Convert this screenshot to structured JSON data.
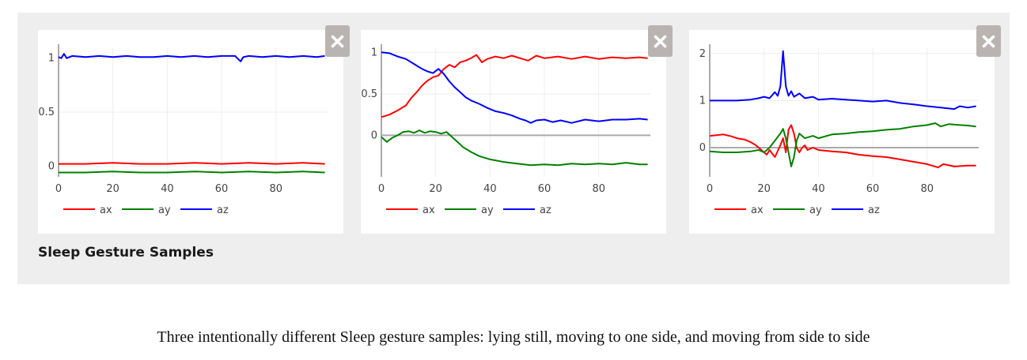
{
  "figure": {
    "title": "Sleep Gesture Samples",
    "caption": "Three intentionally different Sleep gesture samples: lying still, moving to one side, and moving from side to side"
  },
  "icons": {
    "close": "close-icon"
  },
  "colors": {
    "ax": "#ff0000",
    "ay": "#008000",
    "az": "#0000ff",
    "panel": "#eeeeee",
    "close_button": "#b9b4b2"
  },
  "chart_data": [
    {
      "type": "line",
      "title": "",
      "xlabel": "",
      "ylabel": "",
      "xlim": [
        0,
        99
      ],
      "ylim": [
        -0.1,
        1.1
      ],
      "xticks": [
        0,
        20,
        40,
        60,
        80
      ],
      "yticks": [
        0,
        0.5,
        1
      ],
      "ytick_labels": [
        "0",
        "0.5",
        "1"
      ],
      "zero_line": false,
      "legend": "bottom-left",
      "series": [
        {
          "name": "ax",
          "color": "#ff0000",
          "points": [
            [
              0,
              0.02
            ],
            [
              10,
              0.02
            ],
            [
              20,
              0.03
            ],
            [
              30,
              0.02
            ],
            [
              40,
              0.02
            ],
            [
              50,
              0.03
            ],
            [
              60,
              0.02
            ],
            [
              70,
              0.03
            ],
            [
              80,
              0.02
            ],
            [
              90,
              0.03
            ],
            [
              98,
              0.02
            ]
          ]
        },
        {
          "name": "ay",
          "color": "#008000",
          "points": [
            [
              0,
              -0.06
            ],
            [
              10,
              -0.06
            ],
            [
              20,
              -0.05
            ],
            [
              30,
              -0.06
            ],
            [
              40,
              -0.06
            ],
            [
              50,
              -0.05
            ],
            [
              60,
              -0.06
            ],
            [
              70,
              -0.05
            ],
            [
              80,
              -0.06
            ],
            [
              90,
              -0.05
            ],
            [
              98,
              -0.06
            ]
          ]
        },
        {
          "name": "az",
          "color": "#0000ff",
          "points": [
            [
              0,
              1.01
            ],
            [
              1,
              1.0
            ],
            [
              2,
              1.04
            ],
            [
              3,
              1.0
            ],
            [
              5,
              1.02
            ],
            [
              10,
              1.01
            ],
            [
              15,
              1.02
            ],
            [
              20,
              1.01
            ],
            [
              25,
              1.02
            ],
            [
              30,
              1.01
            ],
            [
              35,
              1.01
            ],
            [
              40,
              1.02
            ],
            [
              45,
              1.01
            ],
            [
              50,
              1.02
            ],
            [
              55,
              1.01
            ],
            [
              60,
              1.02
            ],
            [
              65,
              1.02
            ],
            [
              67,
              0.97
            ],
            [
              68,
              1.01
            ],
            [
              70,
              1.02
            ],
            [
              75,
              1.01
            ],
            [
              80,
              1.02
            ],
            [
              85,
              1.01
            ],
            [
              90,
              1.02
            ],
            [
              95,
              1.01
            ],
            [
              98,
              1.02
            ]
          ]
        }
      ]
    },
    {
      "type": "line",
      "title": "",
      "xlabel": "",
      "ylabel": "",
      "xlim": [
        0,
        99
      ],
      "ylim": [
        -0.5,
        1.06
      ],
      "xticks": [
        0,
        20,
        40,
        60,
        80
      ],
      "yticks": [
        0,
        0.5,
        1
      ],
      "ytick_labels": [
        "0",
        "0.5",
        "1"
      ],
      "zero_line": true,
      "legend": "bottom-left",
      "series": [
        {
          "name": "ax",
          "color": "#ff0000",
          "points": [
            [
              0,
              0.22
            ],
            [
              3,
              0.25
            ],
            [
              6,
              0.3
            ],
            [
              9,
              0.36
            ],
            [
              11,
              0.45
            ],
            [
              13,
              0.52
            ],
            [
              15,
              0.6
            ],
            [
              17,
              0.66
            ],
            [
              19,
              0.7
            ],
            [
              21,
              0.72
            ],
            [
              23,
              0.8
            ],
            [
              25,
              0.85
            ],
            [
              27,
              0.82
            ],
            [
              29,
              0.88
            ],
            [
              31,
              0.9
            ],
            [
              33,
              0.93
            ],
            [
              35,
              0.97
            ],
            [
              37,
              0.88
            ],
            [
              39,
              0.92
            ],
            [
              42,
              0.95
            ],
            [
              45,
              0.93
            ],
            [
              48,
              0.96
            ],
            [
              51,
              0.93
            ],
            [
              54,
              0.9
            ],
            [
              57,
              0.96
            ],
            [
              60,
              0.93
            ],
            [
              65,
              0.95
            ],
            [
              70,
              0.92
            ],
            [
              75,
              0.95
            ],
            [
              80,
              0.92
            ],
            [
              85,
              0.94
            ],
            [
              90,
              0.93
            ],
            [
              95,
              0.94
            ],
            [
              98,
              0.93
            ]
          ]
        },
        {
          "name": "ay",
          "color": "#008000",
          "points": [
            [
              0,
              -0.02
            ],
            [
              2,
              -0.08
            ],
            [
              4,
              -0.03
            ],
            [
              6,
              0.0
            ],
            [
              8,
              0.04
            ],
            [
              10,
              0.05
            ],
            [
              12,
              0.03
            ],
            [
              14,
              0.06
            ],
            [
              16,
              0.03
            ],
            [
              18,
              0.05
            ],
            [
              20,
              0.04
            ],
            [
              22,
              0.02
            ],
            [
              24,
              0.04
            ],
            [
              26,
              -0.02
            ],
            [
              28,
              -0.08
            ],
            [
              30,
              -0.14
            ],
            [
              33,
              -0.2
            ],
            [
              36,
              -0.25
            ],
            [
              40,
              -0.29
            ],
            [
              45,
              -0.32
            ],
            [
              50,
              -0.34
            ],
            [
              55,
              -0.36
            ],
            [
              60,
              -0.35
            ],
            [
              65,
              -0.36
            ],
            [
              70,
              -0.34
            ],
            [
              75,
              -0.35
            ],
            [
              80,
              -0.34
            ],
            [
              85,
              -0.35
            ],
            [
              90,
              -0.33
            ],
            [
              95,
              -0.35
            ],
            [
              98,
              -0.35
            ]
          ]
        },
        {
          "name": "az",
          "color": "#0000ff",
          "points": [
            [
              0,
              1.0
            ],
            [
              3,
              0.99
            ],
            [
              6,
              0.95
            ],
            [
              9,
              0.92
            ],
            [
              11,
              0.88
            ],
            [
              13,
              0.84
            ],
            [
              15,
              0.8
            ],
            [
              17,
              0.77
            ],
            [
              19,
              0.75
            ],
            [
              21,
              0.8
            ],
            [
              23,
              0.74
            ],
            [
              25,
              0.65
            ],
            [
              27,
              0.58
            ],
            [
              29,
              0.52
            ],
            [
              31,
              0.46
            ],
            [
              33,
              0.42
            ],
            [
              36,
              0.38
            ],
            [
              39,
              0.33
            ],
            [
              42,
              0.29
            ],
            [
              45,
              0.27
            ],
            [
              48,
              0.24
            ],
            [
              51,
              0.2
            ],
            [
              53,
              0.18
            ],
            [
              55,
              0.15
            ],
            [
              57,
              0.18
            ],
            [
              60,
              0.19
            ],
            [
              63,
              0.16
            ],
            [
              66,
              0.18
            ],
            [
              70,
              0.15
            ],
            [
              75,
              0.19
            ],
            [
              80,
              0.17
            ],
            [
              85,
              0.19
            ],
            [
              90,
              0.19
            ],
            [
              95,
              0.2
            ],
            [
              98,
              0.19
            ]
          ]
        }
      ]
    },
    {
      "type": "line",
      "title": "",
      "xlabel": "",
      "ylabel": "",
      "xlim": [
        0,
        99
      ],
      "ylim": [
        -0.62,
        2.13
      ],
      "xticks": [
        0,
        20,
        40,
        60,
        80
      ],
      "yticks": [
        0,
        1,
        2
      ],
      "ytick_labels": [
        "0",
        "1",
        "2"
      ],
      "zero_line": true,
      "legend": "bottom-left",
      "series": [
        {
          "name": "ax",
          "color": "#ff0000",
          "points": [
            [
              0,
              0.25
            ],
            [
              5,
              0.28
            ],
            [
              8,
              0.24
            ],
            [
              10,
              0.2
            ],
            [
              13,
              0.17
            ],
            [
              15,
              0.12
            ],
            [
              17,
              0.05
            ],
            [
              19,
              -0.05
            ],
            [
              21,
              -0.15
            ],
            [
              22,
              -0.05
            ],
            [
              24,
              -0.2
            ],
            [
              26,
              0.05
            ],
            [
              27,
              0.2
            ],
            [
              28,
              -0.1
            ],
            [
              29,
              0.38
            ],
            [
              30,
              0.48
            ],
            [
              31,
              0.3
            ],
            [
              32,
              0.0
            ],
            [
              33,
              -0.1
            ],
            [
              34,
              0.0
            ],
            [
              35,
              0.05
            ],
            [
              36,
              -0.05
            ],
            [
              38,
              0.0
            ],
            [
              40,
              -0.05
            ],
            [
              45,
              -0.08
            ],
            [
              50,
              -0.1
            ],
            [
              55,
              -0.15
            ],
            [
              60,
              -0.18
            ],
            [
              65,
              -0.2
            ],
            [
              70,
              -0.25
            ],
            [
              75,
              -0.3
            ],
            [
              80,
              -0.35
            ],
            [
              84,
              -0.42
            ],
            [
              86,
              -0.35
            ],
            [
              90,
              -0.4
            ],
            [
              95,
              -0.38
            ],
            [
              98,
              -0.38
            ]
          ]
        },
        {
          "name": "ay",
          "color": "#008000",
          "points": [
            [
              0,
              -0.08
            ],
            [
              5,
              -0.1
            ],
            [
              10,
              -0.1
            ],
            [
              15,
              -0.08
            ],
            [
              18,
              -0.05
            ],
            [
              20,
              -0.1
            ],
            [
              22,
              0.0
            ],
            [
              24,
              0.15
            ],
            [
              26,
              0.3
            ],
            [
              27,
              0.4
            ],
            [
              28,
              0.2
            ],
            [
              29,
              -0.1
            ],
            [
              30,
              -0.4
            ],
            [
              31,
              -0.2
            ],
            [
              32,
              0.15
            ],
            [
              33,
              0.3
            ],
            [
              35,
              0.2
            ],
            [
              38,
              0.25
            ],
            [
              40,
              0.2
            ],
            [
              45,
              0.28
            ],
            [
              50,
              0.3
            ],
            [
              55,
              0.33
            ],
            [
              60,
              0.35
            ],
            [
              65,
              0.38
            ],
            [
              70,
              0.4
            ],
            [
              75,
              0.45
            ],
            [
              80,
              0.48
            ],
            [
              83,
              0.52
            ],
            [
              85,
              0.45
            ],
            [
              88,
              0.5
            ],
            [
              92,
              0.48
            ],
            [
              95,
              0.47
            ],
            [
              98,
              0.45
            ]
          ]
        },
        {
          "name": "az",
          "color": "#0000ff",
          "points": [
            [
              0,
              1.0
            ],
            [
              5,
              1.0
            ],
            [
              10,
              1.0
            ],
            [
              15,
              1.02
            ],
            [
              18,
              1.05
            ],
            [
              20,
              1.08
            ],
            [
              22,
              1.05
            ],
            [
              24,
              1.18
            ],
            [
              25,
              1.1
            ],
            [
              26,
              1.3
            ],
            [
              27,
              2.05
            ],
            [
              28,
              1.3
            ],
            [
              29,
              1.1
            ],
            [
              30,
              1.2
            ],
            [
              31,
              1.08
            ],
            [
              33,
              1.15
            ],
            [
              35,
              1.05
            ],
            [
              38,
              1.08
            ],
            [
              40,
              1.02
            ],
            [
              45,
              1.04
            ],
            [
              50,
              1.02
            ],
            [
              55,
              1.0
            ],
            [
              60,
              0.98
            ],
            [
              65,
              1.0
            ],
            [
              70,
              0.95
            ],
            [
              75,
              0.92
            ],
            [
              80,
              0.88
            ],
            [
              85,
              0.85
            ],
            [
              90,
              0.82
            ],
            [
              92,
              0.88
            ],
            [
              95,
              0.85
            ],
            [
              98,
              0.88
            ]
          ]
        }
      ]
    }
  ]
}
